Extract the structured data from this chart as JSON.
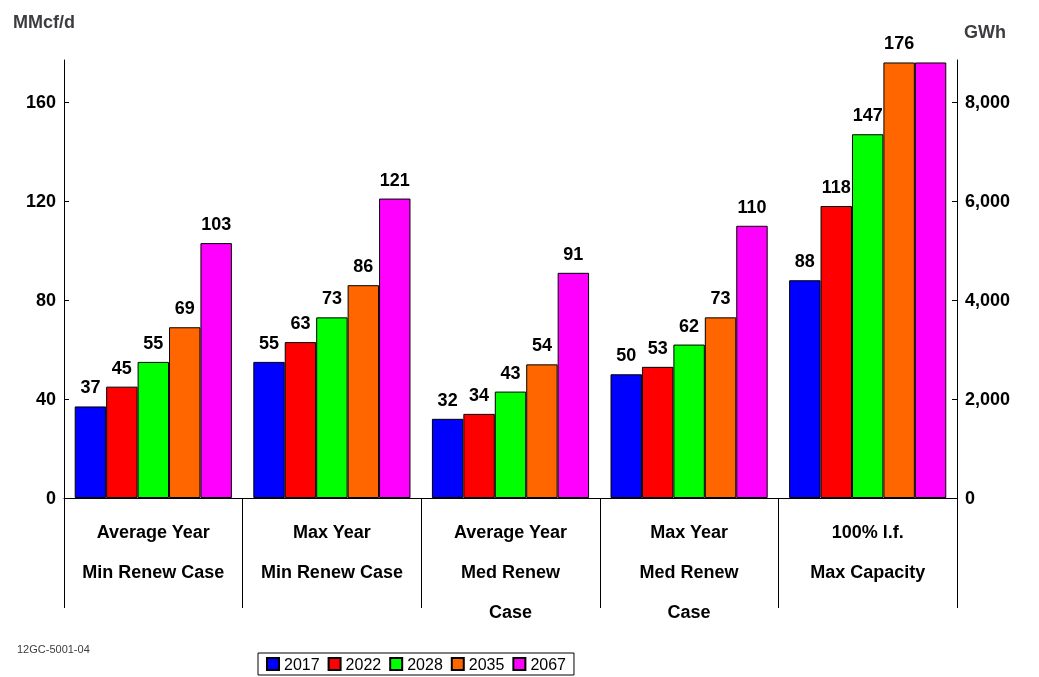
{
  "chart_data": {
    "type": "bar",
    "categories": [
      "Average Year\nMin Renew Case",
      "Max Year\nMin Renew Case",
      "Average Year\nMed Renew\nCase",
      "Max Year\nMed Renew\nCase",
      "100% l.f.\nMax Capacity"
    ],
    "series": [
      {
        "name": "2017",
        "color": "#0000ff",
        "values": [
          37,
          55,
          32,
          50,
          88
        ],
        "value_labels": [
          "37",
          "55",
          "32",
          "50",
          "88"
        ]
      },
      {
        "name": "2022",
        "color": "#ff0000",
        "values": [
          45,
          63,
          34,
          53,
          118
        ],
        "value_labels": [
          "45",
          "63",
          "34",
          "53",
          "118"
        ]
      },
      {
        "name": "2028",
        "color": "#00ff00",
        "values": [
          55,
          73,
          43,
          62,
          147
        ],
        "value_labels": [
          "55",
          "73",
          "43",
          "62",
          "147"
        ]
      },
      {
        "name": "2035",
        "color": "#ff6600",
        "values": [
          69,
          86,
          54,
          73,
          176
        ],
        "value_labels": [
          "69",
          "86",
          "54",
          "73",
          "176"
        ]
      },
      {
        "name": "2067",
        "color": "#ff00ff",
        "values": [
          103,
          121,
          91,
          110,
          176
        ],
        "value_labels": [
          "103",
          "121",
          "91",
          "110",
          null
        ]
      }
    ],
    "ylabel": "MMcf/d",
    "y2label": "GWh",
    "ylim": [
      0,
      177
    ],
    "yticks": [
      0,
      40,
      80,
      120,
      160
    ],
    "y2lim": [
      0,
      8850
    ],
    "y2ticks": [
      0,
      {
        "value": 2000,
        "label": "2,000"
      },
      {
        "value": 4000,
        "label": "4,000"
      },
      {
        "value": 6000,
        "label": "6,000"
      },
      {
        "value": 8000,
        "label": "8,000"
      }
    ],
    "annotations": [
      "12GC-5001-04"
    ],
    "legend": "bottom",
    "grid": false
  }
}
